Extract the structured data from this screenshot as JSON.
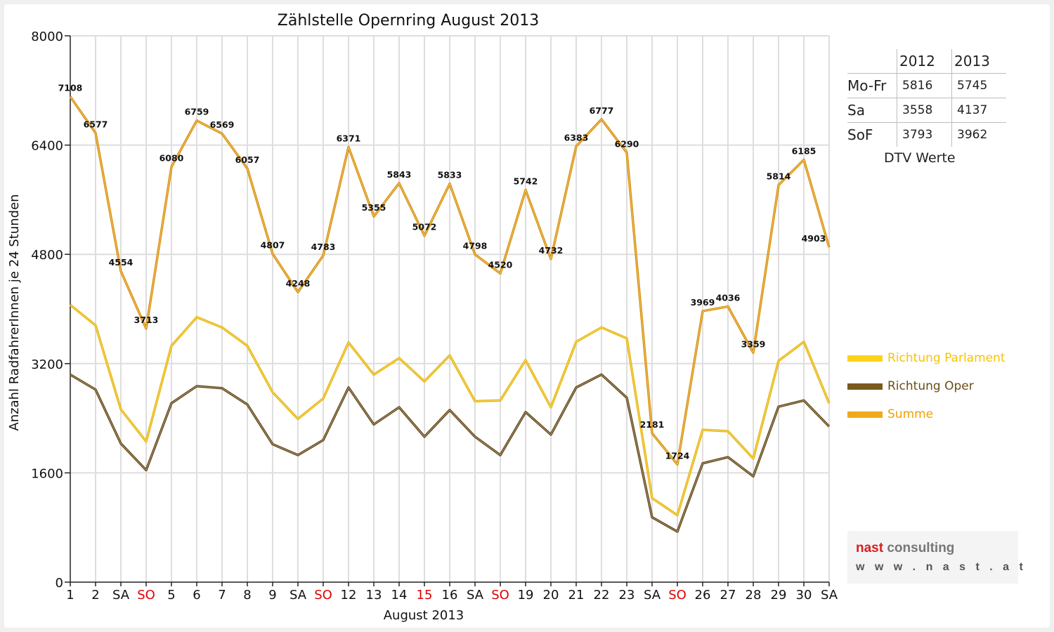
{
  "chart_data": {
    "type": "line",
    "title": "Zählstelle Opernring August 2013",
    "xlabel": "August 2013",
    "ylabel": "Anzahl RadfahrerInnen je 24 Stunden",
    "ylim": [
      0,
      8000
    ],
    "yticks": [
      0,
      1600,
      3200,
      4800,
      6400,
      8000
    ],
    "grid": true,
    "legend_position": "right",
    "categories": [
      "1",
      "2",
      "SA",
      "SO",
      "5",
      "6",
      "7",
      "8",
      "9",
      "SA",
      "SO",
      "12",
      "13",
      "14",
      "15",
      "16",
      "SA",
      "SO",
      "19",
      "20",
      "21",
      "22",
      "23",
      "SA",
      "SO",
      "26",
      "27",
      "28",
      "29",
      "30",
      "SA"
    ],
    "highlighted_categories": [
      3,
      10,
      14,
      17,
      24
    ],
    "series": [
      {
        "name": "Richtung Parlament",
        "color": "#ffd21a",
        "values": [
          4060,
          3760,
          2530,
          2060,
          3460,
          3880,
          3730,
          3460,
          2780,
          2390,
          2690,
          3510,
          3040,
          3280,
          2940,
          3320,
          2650,
          2660,
          3250,
          2560,
          3520,
          3730,
          3570,
          1230,
          980,
          2230,
          2210,
          1810,
          3240,
          3520,
          2620
        ]
      },
      {
        "name": "Richtung Oper",
        "color": "#7a5a1e",
        "values": [
          3040,
          2820,
          2030,
          1640,
          2620,
          2870,
          2840,
          2600,
          2020,
          1860,
          2080,
          2850,
          2310,
          2560,
          2130,
          2520,
          2130,
          1860,
          2490,
          2160,
          2850,
          3040,
          2700,
          950,
          740,
          1740,
          1830,
          1550,
          2570,
          2660,
          2280
        ]
      },
      {
        "name": "Summe",
        "color": "#f0a91a",
        "values": [
          7108,
          6577,
          4554,
          3713,
          6080,
          6759,
          6569,
          6057,
          4807,
          4248,
          4783,
          6371,
          5355,
          5843,
          5072,
          5833,
          4798,
          4520,
          5742,
          4732,
          6383,
          6777,
          6290,
          2181,
          1724,
          3969,
          4036,
          3359,
          5814,
          6185,
          4903
        ]
      }
    ]
  },
  "dtv_table": {
    "caption": "DTV Werte",
    "columns": [
      "2012",
      "2013"
    ],
    "rows": [
      {
        "label": "Mo-Fr",
        "v2012": "5816",
        "v2013": "5745"
      },
      {
        "label": "Sa",
        "v2012": "3558",
        "v2013": "4137"
      },
      {
        "label": "SoF",
        "v2012": "3793",
        "v2013": "3962"
      }
    ]
  },
  "logo": {
    "word1": "nast",
    "word2": "consulting",
    "url": "w w w . n a s t . a t"
  }
}
